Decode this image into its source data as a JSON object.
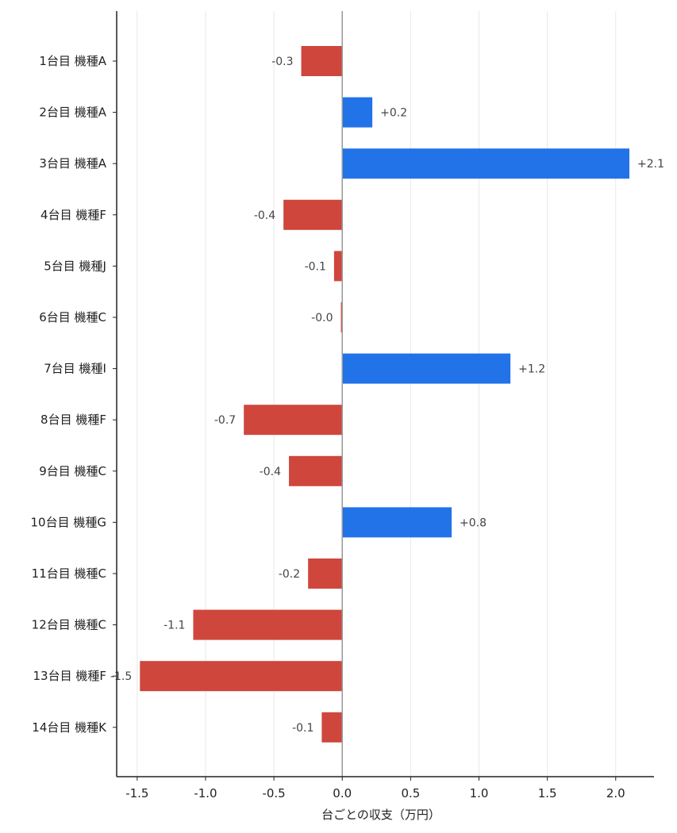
{
  "chart_data": {
    "type": "bar",
    "orientation": "horizontal",
    "categories": [
      "1台目 機種A",
      "2台目 機種A",
      "3台目 機種A",
      "4台目 機種F",
      "5台目 機種J",
      "6台目 機種C",
      "7台目 機種I",
      "8台目 機種F",
      "9台目 機種C",
      "10台目 機種G",
      "11台目 機種C",
      "12台目 機種C",
      "13台目 機種F",
      "14台目 機種K"
    ],
    "values": [
      -0.3,
      0.22,
      2.1,
      -0.43,
      -0.06,
      -0.01,
      1.23,
      -0.72,
      -0.39,
      0.8,
      -0.25,
      -1.09,
      -1.48,
      -0.15
    ],
    "value_labels": [
      "-0.3",
      "+0.2",
      "+2.1",
      "-0.4",
      "-0.1",
      "-0.0",
      "+1.2",
      "-0.7",
      "-0.4",
      "+0.8",
      "-0.2",
      "-1.1",
      "-1.5",
      "-0.1"
    ],
    "xlabel": "台ごとの収支（万円）",
    "ylabel": "",
    "xlim": [
      -1.65,
      2.28
    ],
    "xticks": [
      -1.5,
      -1.0,
      -0.5,
      0.0,
      0.5,
      1.0,
      1.5,
      2.0
    ],
    "xtick_labels": [
      "-1.5",
      "-1.0",
      "-0.5",
      "0.0",
      "0.5",
      "1.0",
      "1.5",
      "2.0"
    ],
    "grid": "vertical",
    "colors": {
      "positive": "#2272e8",
      "negative": "#cf463c",
      "zero_line": "#999999",
      "grid": "#e8e8e8",
      "axis": "#222222"
    }
  }
}
